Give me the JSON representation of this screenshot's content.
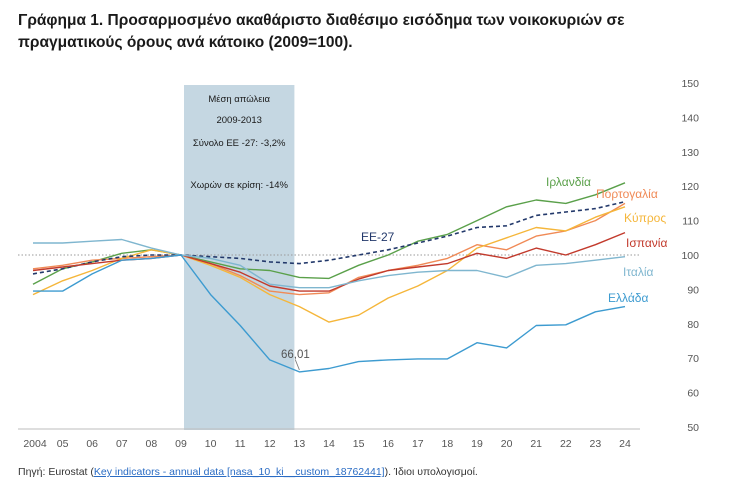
{
  "title": "Γράφημα 1. Προσαρμοσμένο ακαθάριστο διαθέσιμο εισόδημα των νοικοκυριών σε πραγματικούς όρους ανά κάτοικο (2009=100).",
  "source": {
    "prefix": "Πηγή: Eurostat (",
    "link_text": "Key indicators - annual data [nasa_10_ki__custom_18762441]",
    "suffix": "). Ίδιοι υπολογισμοί."
  },
  "chart_data": {
    "type": "line",
    "categories": [
      "2004",
      "05",
      "06",
      "07",
      "08",
      "09",
      "10",
      "11",
      "12",
      "13",
      "14",
      "15",
      "16",
      "17",
      "18",
      "19",
      "20",
      "21",
      "22",
      "23",
      "24"
    ],
    "y_axis": {
      "position": "right",
      "ylim": [
        50,
        150
      ],
      "ticks": [
        50,
        60,
        70,
        80,
        90,
        100,
        110,
        120,
        130,
        140,
        150
      ]
    },
    "grid": false,
    "reference_line": {
      "value": 100,
      "style": "dotted"
    },
    "shaded_region": {
      "from": "09",
      "to": "13",
      "color": "#c5d7e2",
      "lines": [
        "Μέση απώλεια",
        "2009-2013",
        "Σύνολο ΕΕ -27:  -3,2%",
        "",
        "Χωρών σε κρίση: -14%"
      ]
    },
    "annotation": {
      "text": "66,01",
      "category": "13",
      "value": 66.01
    },
    "series": [
      {
        "name": "Ιρλανδία",
        "color": "#5aa04a",
        "dashed": false,
        "values": [
          91.5,
          96,
          98,
          100.5,
          101.5,
          100,
          98,
          96,
          95.5,
          93.5,
          93.2,
          97,
          100,
          104,
          106,
          110,
          114,
          116,
          115,
          117.5,
          121
        ]
      },
      {
        "name": "Πορτογαλία",
        "color": "#f08a56",
        "dashed": false,
        "values": [
          96,
          97,
          98.5,
          99,
          99.5,
          100,
          97.5,
          94,
          89.5,
          88.5,
          89,
          93.5,
          95.5,
          97,
          99,
          103,
          101.5,
          105.5,
          107,
          110,
          115
        ]
      },
      {
        "name": "Κύπρος",
        "color": "#f5b63a",
        "dashed": false,
        "values": [
          88.5,
          92.5,
          95.5,
          99,
          101.5,
          100,
          97,
          93.5,
          88.5,
          85,
          80.5,
          82.5,
          87.5,
          91,
          95.5,
          102,
          105,
          108,
          107,
          111,
          114
        ]
      },
      {
        "name": "ΕΕ-27",
        "color": "#23396b",
        "dashed": true,
        "values": [
          94.5,
          96,
          98,
          99.5,
          100,
          100,
          99.5,
          99,
          98,
          97.5,
          98.5,
          100,
          101.5,
          103.5,
          105.5,
          108,
          108.5,
          111.5,
          112.5,
          113.5,
          115.5
        ]
      },
      {
        "name": "Ισπανία",
        "color": "#c23a2c",
        "dashed": false,
        "values": [
          95.5,
          96.5,
          97.5,
          98.5,
          99,
          100,
          97.5,
          95,
          91,
          89.5,
          89.5,
          93,
          95.5,
          96.5,
          97.5,
          100.5,
          99,
          102,
          100,
          103,
          106.5
        ]
      },
      {
        "name": "Ιταλία",
        "color": "#7fb6cf",
        "dashed": false,
        "values": [
          103.5,
          103.5,
          104,
          104.5,
          102,
          100,
          99,
          97,
          91.5,
          90.5,
          90.5,
          92.5,
          94,
          95,
          95.5,
          95.5,
          93.5,
          97,
          97.5,
          98.5,
          99.5
        ]
      },
      {
        "name": "Ελλάδα",
        "color": "#3d9bd0",
        "dashed": false,
        "values": [
          89.5,
          89.5,
          94.5,
          98.5,
          99,
          100,
          88.5,
          79.5,
          69.5,
          66.01,
          67,
          69,
          69.5,
          69.8,
          69.8,
          74.5,
          73,
          79.5,
          79.7,
          83.5,
          85
        ]
      }
    ]
  }
}
